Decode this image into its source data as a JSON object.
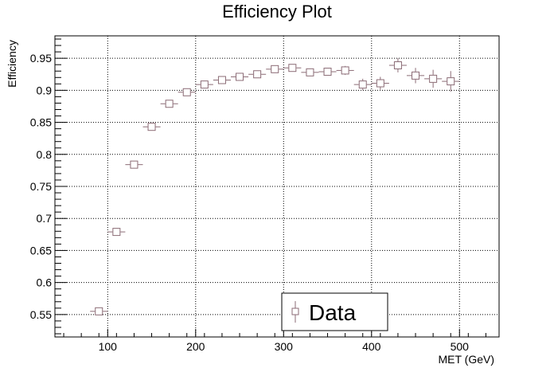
{
  "chart_data": {
    "type": "scatter",
    "title": "Efficiency Plot",
    "xlabel": "MET (GeV)",
    "ylabel": "Efficiency",
    "xlim": [
      40,
      545
    ],
    "ylim": [
      0.515,
      0.985
    ],
    "x_ticks": [
      100,
      200,
      300,
      400,
      500
    ],
    "x_tick_labels": [
      "100",
      "200",
      "300",
      "400",
      "500"
    ],
    "y_ticks": [
      0.55,
      0.6,
      0.65,
      0.7,
      0.75,
      0.8,
      0.85,
      0.9,
      0.95
    ],
    "y_tick_labels": [
      "0.55",
      "0.6",
      "0.65",
      "0.7",
      "0.75",
      "0.8",
      "0.85",
      "0.9",
      "0.95"
    ],
    "grid": true,
    "legend_position": "bottom-right",
    "marker": "open-square",
    "color": "#8b6b75",
    "series": [
      {
        "name": "Data",
        "x": [
          90,
          110,
          130,
          150,
          170,
          190,
          210,
          230,
          250,
          270,
          290,
          310,
          330,
          350,
          370,
          390,
          410,
          430,
          450,
          470,
          490
        ],
        "x_err": [
          10,
          10,
          10,
          10,
          10,
          10,
          10,
          10,
          10,
          10,
          10,
          10,
          10,
          10,
          10,
          10,
          10,
          10,
          10,
          10,
          10
        ],
        "y": [
          0.555,
          0.679,
          0.784,
          0.843,
          0.879,
          0.897,
          0.909,
          0.916,
          0.921,
          0.925,
          0.933,
          0.935,
          0.928,
          0.929,
          0.931,
          0.909,
          0.911,
          0.939,
          0.923,
          0.918,
          0.914
        ],
        "y_err": [
          0.004,
          0.004,
          0.004,
          0.004,
          0.004,
          0.004,
          0.004,
          0.004,
          0.004,
          0.005,
          0.005,
          0.006,
          0.006,
          0.006,
          0.007,
          0.009,
          0.01,
          0.011,
          0.012,
          0.014,
          0.016
        ]
      }
    ]
  }
}
